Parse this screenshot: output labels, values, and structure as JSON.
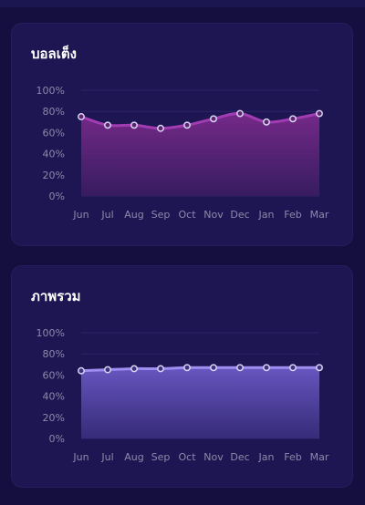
{
  "cards": [
    {
      "title": "บอลเต็ง",
      "colors": {
        "line": "#a23cb2",
        "fill_top": "#7a2a8c",
        "fill_bottom": "#3c1d63",
        "point": "#5b2570"
      },
      "chart_data": {
        "type": "area",
        "categories": [
          "Jun",
          "Jul",
          "Aug",
          "Sep",
          "Oct",
          "Nov",
          "Dec",
          "Jan",
          "Feb",
          "Mar"
        ],
        "values": [
          75,
          67,
          67,
          64,
          67,
          73,
          78,
          70,
          73,
          78
        ],
        "ylim": [
          0,
          100
        ],
        "yticks": [
          "0%",
          "20%",
          "40%",
          "60%",
          "80%",
          "100%"
        ],
        "grid": true
      }
    },
    {
      "title": "ภาพรวม",
      "colors": {
        "line": "#9f8ef0",
        "fill_top": "#6b5ac6",
        "fill_bottom": "#3b2f80",
        "point": "#3c3380"
      },
      "chart_data": {
        "type": "area",
        "categories": [
          "Jun",
          "Jul",
          "Aug",
          "Sep",
          "Oct",
          "Nov",
          "Dec",
          "Jan",
          "Feb",
          "Mar"
        ],
        "values": [
          64,
          65,
          66,
          66,
          67,
          67,
          67,
          67,
          67,
          67
        ],
        "ylim": [
          0,
          100
        ],
        "yticks": [
          "0%",
          "20%",
          "40%",
          "60%",
          "80%",
          "100%"
        ],
        "grid": true
      }
    }
  ]
}
